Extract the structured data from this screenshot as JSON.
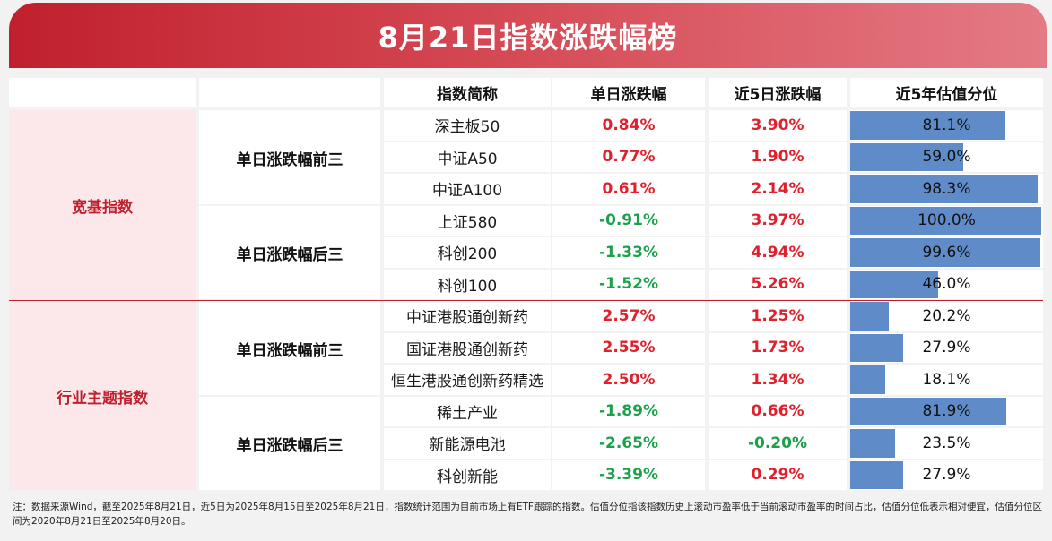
{
  "title": "8月21日指数涨跌幅榜",
  "headers": {
    "name": "指数简称",
    "daily": "单日涨跌幅",
    "five_day": "近5日涨跌幅",
    "percentile": "近5年估值分位"
  },
  "categories": [
    {
      "label": "宽基指数",
      "groups": [
        {
          "label": "单日涨跌幅前三",
          "rows": [
            {
              "name": "深主板50",
              "daily": "0.84%",
              "five_day": "3.90%",
              "percentile": "81.1%",
              "pct_value": 81.1
            },
            {
              "name": "中证A50",
              "daily": "0.77%",
              "five_day": "1.90%",
              "percentile": "59.0%",
              "pct_value": 59.0
            },
            {
              "name": "中证A100",
              "daily": "0.61%",
              "five_day": "2.14%",
              "percentile": "98.3%",
              "pct_value": 98.3
            }
          ]
        },
        {
          "label": "单日涨跌幅后三",
          "rows": [
            {
              "name": "上证580",
              "daily": "-0.91%",
              "five_day": "3.97%",
              "percentile": "100.0%",
              "pct_value": 100.0
            },
            {
              "name": "科创200",
              "daily": "-1.33%",
              "five_day": "4.94%",
              "percentile": "99.6%",
              "pct_value": 99.6
            },
            {
              "name": "科创100",
              "daily": "-1.52%",
              "five_day": "5.26%",
              "percentile": "46.0%",
              "pct_value": 46.0
            }
          ]
        }
      ]
    },
    {
      "label": "行业主题指数",
      "groups": [
        {
          "label": "单日涨跌幅前三",
          "rows": [
            {
              "name": "中证港股通创新药",
              "daily": "2.57%",
              "five_day": "1.25%",
              "percentile": "20.2%",
              "pct_value": 20.2
            },
            {
              "name": "国证港股通创新药",
              "daily": "2.55%",
              "five_day": "1.73%",
              "percentile": "27.9%",
              "pct_value": 27.9
            },
            {
              "name": "恒生港股通创新药精选",
              "daily": "2.50%",
              "five_day": "1.34%",
              "percentile": "18.1%",
              "pct_value": 18.1
            }
          ]
        },
        {
          "label": "单日涨跌幅后三",
          "rows": [
            {
              "name": "稀土产业",
              "daily": "-1.89%",
              "five_day": "0.66%",
              "percentile": "81.9%",
              "pct_value": 81.9
            },
            {
              "name": "新能源电池",
              "daily": "-2.65%",
              "five_day": "-0.20%",
              "percentile": "23.5%",
              "pct_value": 23.5
            },
            {
              "name": "科创新能",
              "daily": "-3.39%",
              "five_day": "0.29%",
              "percentile": "27.9%",
              "pct_value": 27.9
            }
          ]
        }
      ]
    }
  ],
  "footnote": "注：数据来源Wind，截至2025年8月21日，近5日为2025年8月15日至2025年8月21日，指数统计范围为目前市场上有ETF跟踪的指数。估值分位指该指数历史上滚动市盈率低于当前滚动市盈率的时间占比，估值分位低表示相对便宜，估值分位区间为2020年8月21日至2025年8月20日。",
  "colors": {
    "banner": "#c0202d",
    "category_text": "#c0202d",
    "positive": "#e0202c",
    "negative": "#1aa14a",
    "bar": "#5f8cc8",
    "category_bg": "#fce7ea"
  }
}
